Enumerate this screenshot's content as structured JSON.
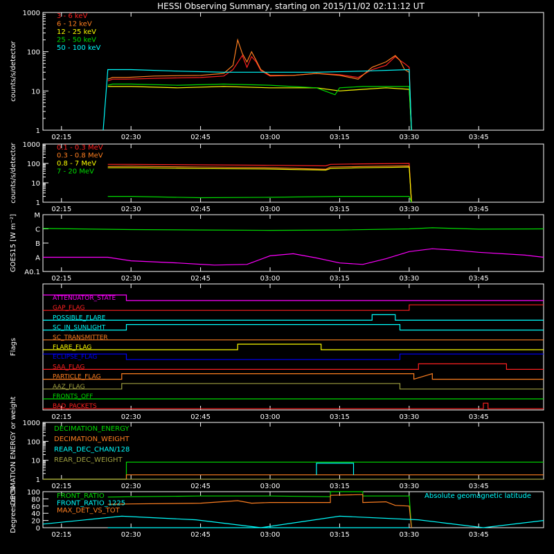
{
  "title": "HESSI Observing Summary, starting on 2015/11/02 02:11:12 UT",
  "colors": {
    "black": "#000000",
    "white": "#ffffff",
    "red": "#ff2020",
    "orange": "#ff7f20",
    "yellow": "#ffff00",
    "green": "#00dd00",
    "cyan": "#00ffff",
    "magenta": "#ff00ff",
    "blue": "#0000ff",
    "brown": "#b08040",
    "olive": "#a0a040"
  },
  "time_ticks": [
    "02:15",
    "02:30",
    "02:45",
    "03:00",
    "03:15",
    "03:30",
    "03:45"
  ],
  "chart_data": [
    {
      "id": "lightcurves",
      "type": "line",
      "ylabel": "counts/s/detector",
      "yscale": "log",
      "ylim": [
        1,
        1000
      ],
      "ytick_labels": [
        "1",
        "10",
        "100",
        "1000"
      ],
      "legend_position": "top-left",
      "xlim": [
        "02:11",
        "03:59"
      ],
      "series": [
        {
          "name": "3 - 6 keV",
          "color": "#ff2020",
          "x": [
            "02:25",
            "02:26",
            "02:29",
            "02:35",
            "02:45",
            "02:50",
            "02:52",
            "02:54",
            "02:55",
            "02:56",
            "02:57",
            "02:58",
            "03:00",
            "03:05",
            "03:10",
            "03:15",
            "03:19",
            "03:22",
            "03:25",
            "03:27",
            "03:28",
            "03:29",
            "03:30",
            "03:30.5"
          ],
          "y": [
            18,
            20,
            20,
            21,
            22,
            24,
            35,
            80,
            40,
            75,
            55,
            33,
            24,
            25,
            28,
            26,
            22,
            35,
            45,
            75,
            60,
            50,
            40,
            1
          ]
        },
        {
          "name": "6 - 12 keV",
          "color": "#ff7f20",
          "x": [
            "02:25",
            "02:26",
            "02:29",
            "02:35",
            "02:45",
            "02:50",
            "02:52",
            "02:53",
            "02:54",
            "02:55",
            "02:56",
            "02:57",
            "02:58",
            "03:00",
            "03:05",
            "03:10",
            "03:15",
            "03:19",
            "03:22",
            "03:25",
            "03:27",
            "03:28",
            "03:29",
            "03:30",
            "03:30.5"
          ],
          "y": [
            20,
            22,
            22,
            24,
            25,
            28,
            45,
            200,
            90,
            55,
            100,
            60,
            35,
            25,
            25,
            28,
            25,
            20,
            40,
            55,
            80,
            60,
            35,
            30,
            1
          ]
        },
        {
          "name": "12 - 25 keV",
          "color": "#ffff00",
          "x": [
            "02:25",
            "02:30",
            "02:40",
            "02:50",
            "03:00",
            "03:10",
            "03:15",
            "03:20",
            "03:25",
            "03:30",
            "03:30.5"
          ],
          "y": [
            13,
            13,
            12,
            13,
            12,
            12,
            10,
            11,
            12,
            11,
            1
          ]
        },
        {
          "name": "25 - 50 keV",
          "color": "#00dd00",
          "x": [
            "02:25",
            "02:26",
            "02:30",
            "02:40",
            "02:50",
            "03:00",
            "03:10",
            "03:14",
            "03:15",
            "03:20",
            "03:25",
            "03:30",
            "03:30.5"
          ],
          "y": [
            14,
            15,
            15,
            14,
            15,
            14,
            12,
            8,
            12,
            13,
            13,
            13,
            1
          ]
        },
        {
          "name": "50 - 100 keV",
          "color": "#00ffff",
          "x": [
            "02:24",
            "02:25",
            "02:30",
            "02:40",
            "02:50",
            "03:00",
            "03:10",
            "03:20",
            "03:30",
            "03:30.5"
          ],
          "y": [
            1,
            35,
            35,
            32,
            30,
            30,
            30,
            32,
            35,
            1
          ]
        }
      ]
    },
    {
      "id": "high_energy",
      "type": "line",
      "ylabel": "counts/s/detector",
      "yscale": "log",
      "ylim": [
        1,
        1000
      ],
      "ytick_labels": [
        "1",
        "10",
        "100",
        "1000"
      ],
      "legend_position": "top-left",
      "series": [
        {
          "name": "0.1 - 0.3 MeV",
          "color": "#ff2020",
          "x": [
            "02:25",
            "02:30",
            "02:45",
            "03:00",
            "03:12",
            "03:13",
            "03:20",
            "03:30",
            "03:30.5"
          ],
          "y": [
            90,
            90,
            85,
            80,
            75,
            90,
            95,
            100,
            1
          ]
        },
        {
          "name": "0.3 - 0.8 MeV",
          "color": "#ff7f20",
          "x": [
            "02:25",
            "02:30",
            "02:45",
            "03:00",
            "03:12",
            "03:13",
            "03:20",
            "03:30",
            "03:30.5"
          ],
          "y": [
            70,
            72,
            65,
            60,
            50,
            65,
            70,
            75,
            1
          ]
        },
        {
          "name": "0.8 - 7 MeV",
          "color": "#ffff00",
          "x": [
            "02:25",
            "02:30",
            "02:45",
            "03:00",
            "03:12",
            "03:13",
            "03:20",
            "03:30",
            "03:30.5"
          ],
          "y": [
            60,
            60,
            55,
            52,
            45,
            55,
            60,
            65,
            1
          ]
        },
        {
          "name": "7 - 20 MeV",
          "color": "#00dd00",
          "x": [
            "02:25",
            "02:30",
            "02:45",
            "03:00",
            "03:15",
            "03:30",
            "03:30.5"
          ],
          "y": [
            2,
            2,
            1.7,
            1.8,
            2,
            2,
            1
          ]
        }
      ]
    },
    {
      "id": "goes",
      "type": "line",
      "ylabel": "GOES15 [W m⁻²]",
      "ytick_labels": [
        "A0.1",
        "A",
        "B",
        "C",
        "M"
      ],
      "series": [
        {
          "name": "GOES long",
          "color": "#00dd00",
          "x": [
            "02:11",
            "02:30",
            "02:45",
            "03:00",
            "03:15",
            "03:30",
            "03:35",
            "03:45",
            "03:59"
          ],
          "y": [
            3.03,
            2.95,
            2.92,
            2.9,
            2.92,
            3.0,
            3.08,
            2.98,
            3.0
          ]
        },
        {
          "name": "GOES short",
          "color": "#ff00ff",
          "x": [
            "02:11",
            "02:25",
            "02:30",
            "02:40",
            "02:48",
            "02:55",
            "03:00",
            "03:05",
            "03:10",
            "03:15",
            "03:20",
            "03:25",
            "03:30",
            "03:35",
            "03:40",
            "03:45",
            "03:55",
            "03:59"
          ],
          "y": [
            1.0,
            1.0,
            0.75,
            0.6,
            0.45,
            0.5,
            1.1,
            1.25,
            0.95,
            0.6,
            0.5,
            0.9,
            1.4,
            1.6,
            1.5,
            1.35,
            1.15,
            1.0
          ]
        }
      ]
    },
    {
      "id": "flags",
      "type": "line",
      "ylabel": "Flags",
      "series": [
        {
          "name": "ATTENUATOR_STATE",
          "color": "#ff00ff",
          "x": [
            "02:11",
            "02:29",
            "02:29",
            "03:59"
          ],
          "y": [
            1,
            1,
            0,
            0
          ]
        },
        {
          "name": "GAP_FLAG",
          "color": "#ff2020",
          "x": [
            "02:11",
            "03:30",
            "03:30",
            "03:59"
          ],
          "y": [
            0,
            0,
            1,
            1
          ]
        },
        {
          "name": "POSSIBLE_FLARE",
          "color": "#00ffff",
          "x": [
            "02:11",
            "03:22",
            "03:22",
            "03:27",
            "03:27",
            "03:59"
          ],
          "y": [
            0,
            0,
            1,
            1,
            0,
            0
          ]
        },
        {
          "name": "SC_IN_SUNLIGHT",
          "color": "#00ffff",
          "x": [
            "02:11",
            "02:29",
            "02:29",
            "03:28",
            "03:28",
            "03:59"
          ],
          "y": [
            0,
            0,
            1,
            1,
            0,
            0
          ]
        },
        {
          "name": "SC_TRANSMITTER",
          "color": "#ff7f20",
          "x": [
            "02:11",
            "03:59"
          ],
          "y": [
            0,
            0
          ]
        },
        {
          "name": "FLARE_FLAG",
          "color": "#ffff00",
          "x": [
            "02:11",
            "02:53",
            "02:53",
            "03:11",
            "03:11",
            "03:59"
          ],
          "y": [
            0,
            0,
            1,
            1,
            0,
            0
          ]
        },
        {
          "name": "ECLIPSE_FLAG",
          "color": "#0000ff",
          "x": [
            "02:11",
            "02:29",
            "02:29",
            "03:28",
            "03:28",
            "03:59"
          ],
          "y": [
            1,
            1,
            0,
            0,
            1,
            1
          ]
        },
        {
          "name": "SAA_FLAG",
          "color": "#ff2020",
          "x": [
            "02:11",
            "03:32",
            "03:32",
            "03:51",
            "03:51",
            "03:59"
          ],
          "y": [
            0,
            0,
            1,
            1,
            0,
            0
          ]
        },
        {
          "name": "PARTICLE_FLAG",
          "color": "#ff7f20",
          "x": [
            "02:11",
            "02:28",
            "02:28",
            "03:31",
            "03:31",
            "03:35",
            "03:35",
            "03:59"
          ],
          "y": [
            0,
            0,
            1,
            1,
            0,
            1,
            0,
            0
          ]
        },
        {
          "name": "AAZ_FLAG",
          "color": "#a0a040",
          "x": [
            "02:11",
            "02:28",
            "02:28",
            "03:28",
            "03:28",
            "03:59"
          ],
          "y": [
            0,
            0,
            1,
            1,
            0,
            0
          ]
        },
        {
          "name": "FRONTS_OFF",
          "color": "#00dd00",
          "x": [
            "02:11",
            "03:59"
          ],
          "y": [
            0,
            0
          ]
        },
        {
          "name": "BAD_PACKETS",
          "color": "#ff2020",
          "x": [
            "02:11",
            "03:46",
            "03:46",
            "03:47",
            "03:47",
            "03:59"
          ],
          "y": [
            0,
            0,
            1,
            1,
            0,
            0
          ]
        }
      ]
    },
    {
      "id": "decimation",
      "type": "line",
      "ylabel": "DECIMATION ENERGY or weight",
      "yscale": "log",
      "ylim": [
        1,
        1000
      ],
      "ytick_labels": [
        "1",
        "10",
        "100",
        "1000"
      ],
      "series": [
        {
          "name": "DECIMATION_ENERGY",
          "color": "#00dd00",
          "x": [
            "02:11",
            "02:29",
            "02:29",
            "03:59"
          ],
          "y": [
            1,
            1,
            8,
            8
          ]
        },
        {
          "name": "DECIMATION_WEIGHT",
          "color": "#ff7f20",
          "x": [
            "02:11",
            "02:29",
            "02:29",
            "03:59"
          ],
          "y": [
            1,
            1,
            1.7,
            1.7
          ]
        },
        {
          "name": "REAR_DEC_CHAN/128",
          "color": "#00ffff",
          "x": [
            "03:10",
            "03:10",
            "03:18",
            "03:18"
          ],
          "y": [
            1.7,
            7,
            7,
            1.7
          ]
        },
        {
          "name": "REAR_DEC_WEIGHT",
          "color": "#a0a040",
          "x": [
            "02:11",
            "03:59"
          ],
          "y": [
            1,
            1
          ]
        }
      ]
    },
    {
      "id": "ratios",
      "type": "line",
      "ylabel": "Degrees or %",
      "ylim": [
        0,
        100
      ],
      "ytick_labels": [
        "0",
        "20",
        "40",
        "60",
        "80",
        "100"
      ],
      "annotation": "Absolute geomagnetic latitude",
      "series": [
        {
          "name": "FRONT_RATIO",
          "color": "#00dd00",
          "x": [
            "02:25",
            "02:30",
            "02:45",
            "03:00",
            "03:13",
            "03:13",
            "03:20",
            "03:20",
            "03:30",
            "03:30.5"
          ],
          "y": [
            85,
            86,
            88,
            88,
            86,
            100,
            100,
            88,
            88,
            0
          ]
        },
        {
          "name": "FRONT_RATIO_1225",
          "color": "#00ffff",
          "x": [
            "02:25",
            "03:30"
          ],
          "y": [
            0,
            0
          ]
        },
        {
          "name": "MAX_DET_VS_TOT",
          "color": "#ff7f20",
          "x": [
            "02:25",
            "02:30",
            "02:45",
            "02:53",
            "02:56",
            "03:00",
            "03:13",
            "03:13",
            "03:20",
            "03:20",
            "03:25",
            "03:27",
            "03:30",
            "03:30.5"
          ],
          "y": [
            65,
            66,
            68,
            75,
            68,
            70,
            70,
            90,
            92,
            70,
            72,
            62,
            60,
            0
          ]
        },
        {
          "name": "Absolute geomagnetic latitude",
          "color": "#00ffff",
          "x": [
            "02:11",
            "02:28",
            "02:44",
            "02:58",
            "03:15",
            "03:32",
            "03:46",
            "03:59"
          ],
          "y": [
            10,
            32,
            22,
            0,
            32,
            22,
            0,
            20
          ]
        }
      ]
    }
  ]
}
